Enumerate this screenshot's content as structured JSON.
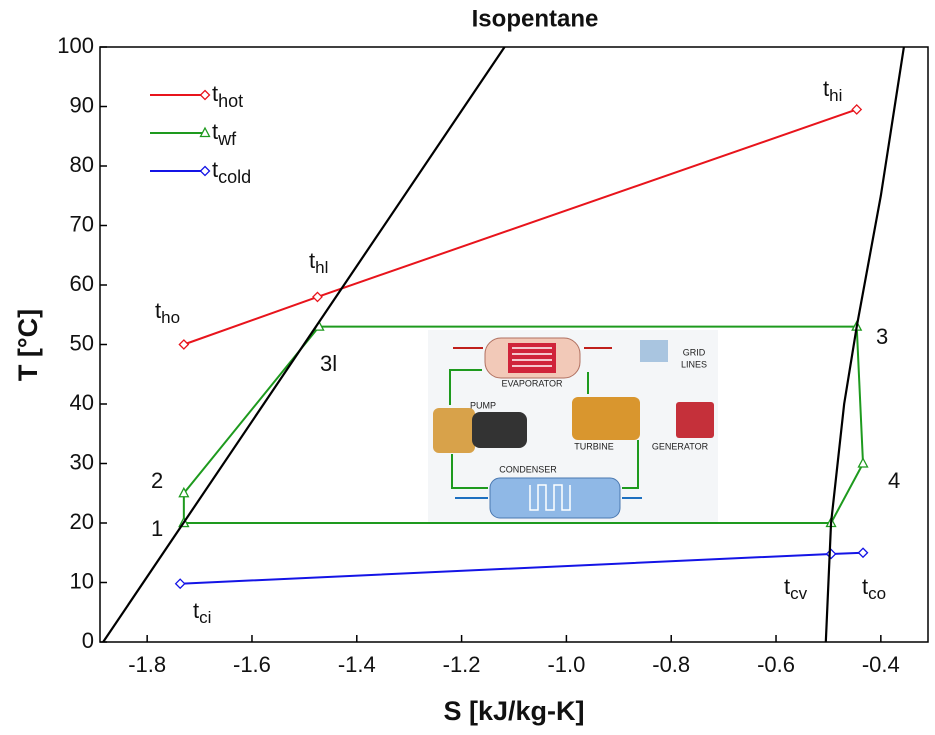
{
  "chart_data": {
    "type": "line",
    "title": "Isopentane",
    "x_label": "S [kJ/kg-K]",
    "y_label": "T [°C]",
    "xlim": [
      -1.89,
      -0.31
    ],
    "ylim": [
      0,
      100
    ],
    "xticks": [
      -1.8,
      -1.6,
      -1.4,
      -1.2,
      {
        "value": -1,
        "label": "-1.0"
      },
      -0.8,
      -0.6,
      -0.4
    ],
    "yticks": [
      0,
      10,
      20,
      30,
      40,
      50,
      60,
      70,
      80,
      90,
      100
    ],
    "grid": false,
    "legend": "upper left",
    "series": [
      {
        "name": "thot",
        "color": "#e8141c",
        "marker": "diamond",
        "x": [
          -1.73,
          -1.475,
          -0.446
        ],
        "values": [
          50,
          58,
          89.5
        ]
      },
      {
        "name": "twf",
        "color": "#1e9a1e",
        "marker": "triangle",
        "x": [
          -1.73,
          -1.73,
          -1.472,
          -0.446,
          -0.434,
          -0.495,
          -1.73
        ],
        "values": [
          20,
          25,
          53,
          53,
          30,
          20,
          20
        ]
      },
      {
        "name": "tcold",
        "color": "#1414e6",
        "marker": "diamond",
        "x": [
          -1.737,
          -0.495,
          -0.434
        ],
        "values": [
          9.8,
          14.8,
          15
        ]
      },
      {
        "color": "#000000",
        "x": [
          -1.884,
          -1.118
        ],
        "values": [
          0,
          100
        ]
      },
      {
        "color": "#000000",
        "x": [
          -0.505,
          -0.495,
          -0.47,
          -0.446,
          -0.4,
          -0.356
        ],
        "values": [
          0,
          20,
          40,
          53,
          75,
          100
        ]
      }
    ],
    "annotations": [
      {
        "text": "t",
        "sub": "ho"
      },
      {
        "text": "t",
        "sub": "hl"
      },
      {
        "text": "t",
        "sub": "hi"
      },
      {
        "text": "t",
        "sub": "cv"
      },
      {
        "text": "t",
        "sub": "co"
      },
      {
        "text": "t",
        "sub": "ci"
      },
      {
        "text": "1"
      },
      {
        "text": "2"
      },
      {
        "text": "3l"
      },
      {
        "text": "3"
      },
      {
        "text": "4"
      }
    ]
  },
  "inset": {
    "labels": [
      "EVAPORATOR",
      "PUMP",
      "TURBINE",
      "GENERATOR",
      "CONDENSER",
      "GRID",
      "LINES"
    ]
  }
}
